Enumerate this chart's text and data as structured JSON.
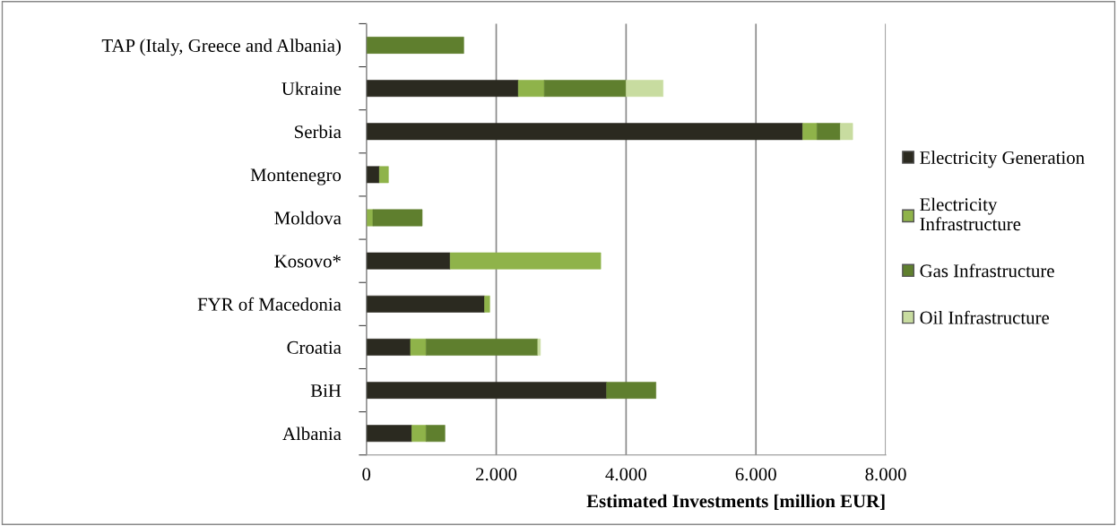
{
  "chart_data": {
    "type": "bar",
    "orientation": "horizontal",
    "stacked": true,
    "categories": [
      "TAP (Italy, Greece and Albania)",
      "Ukraine",
      "Serbia",
      "Montenegro",
      "Moldova",
      "Kosovo*",
      "FYR of Macedonia",
      "Croatia",
      "BiH",
      "Albania"
    ],
    "series": [
      {
        "name": "Electricity Generation",
        "color": "#2b2a20",
        "values": [
          null,
          2340,
          6720,
          200,
          null,
          1290,
          1820,
          680,
          3700,
          700
        ]
      },
      {
        "name": "Electricity Infrastructure",
        "color": "#8fb34a",
        "values": [
          null,
          400,
          220,
          140,
          100,
          2320,
          80,
          240,
          null,
          220
        ]
      },
      {
        "name": "Gas Infrastructure",
        "color": "#5f7f2e",
        "values": [
          1500,
          1260,
          360,
          null,
          760,
          null,
          null,
          1720,
          760,
          290
        ]
      },
      {
        "name": "Oil Infrastructure",
        "color": "#c8dca0",
        "values": [
          null,
          570,
          190,
          null,
          null,
          null,
          null,
          40,
          null,
          null
        ]
      }
    ],
    "xlabel": "Estimated Investments [million EUR]",
    "xlim": [
      0,
      8000
    ],
    "xticks": [
      0,
      {
        "value": 2000,
        "label": "2.000"
      },
      {
        "value": 4000,
        "label": "4.000"
      },
      {
        "value": 6000,
        "label": "6.000"
      },
      {
        "value": 8000,
        "label": "8.000"
      }
    ],
    "grid": "x",
    "legend": "right"
  }
}
